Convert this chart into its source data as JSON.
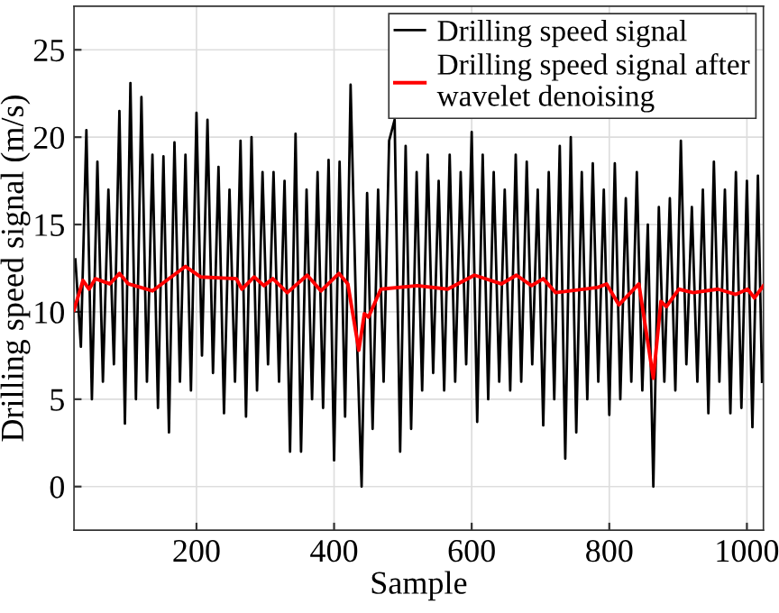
{
  "chart_data": {
    "type": "line",
    "xlabel": "Sample",
    "ylabel": "Drilling speed signal (m/s)",
    "xlim": [
      22,
      1024
    ],
    "ylim": [
      -2.5,
      27.5
    ],
    "xticks": [
      200,
      400,
      600,
      800,
      1000
    ],
    "yticks": [
      0,
      5,
      10,
      15,
      20,
      25
    ],
    "grid": true,
    "legend": "top right",
    "line_style": "solid",
    "marker": "none",
    "series": [
      {
        "name": "Drilling speed signal",
        "color": "#000000",
        "x": [
          24,
          32,
          40,
          48,
          56,
          64,
          72,
          80,
          88,
          96,
          104,
          112,
          120,
          128,
          136,
          144,
          152,
          160,
          168,
          176,
          184,
          192,
          200,
          208,
          216,
          224,
          232,
          240,
          248,
          256,
          264,
          272,
          280,
          288,
          296,
          304,
          312,
          320,
          328,
          336,
          344,
          352,
          360,
          368,
          376,
          384,
          392,
          400,
          408,
          416,
          424,
          432,
          440,
          448,
          456,
          464,
          472,
          480,
          488,
          496,
          504,
          512,
          520,
          528,
          536,
          544,
          552,
          560,
          568,
          576,
          584,
          592,
          600,
          608,
          616,
          624,
          632,
          640,
          648,
          656,
          664,
          672,
          680,
          688,
          696,
          704,
          712,
          720,
          728,
          736,
          744,
          752,
          760,
          768,
          776,
          784,
          792,
          800,
          808,
          816,
          824,
          832,
          840,
          848,
          856,
          864,
          872,
          880,
          888,
          896,
          904,
          912,
          920,
          928,
          936,
          944,
          952,
          960,
          968,
          976,
          984,
          992,
          1000,
          1008,
          1016,
          1022
        ],
        "values": [
          13,
          8,
          20.4,
          5,
          18.6,
          6,
          17,
          7,
          21.5,
          3.6,
          23.1,
          5,
          22.3,
          6,
          19,
          4.5,
          18.9,
          3.1,
          19.7,
          6,
          19,
          5.5,
          21.4,
          7.5,
          21,
          6.5,
          18.3,
          4.2,
          17,
          6,
          19.8,
          4,
          20,
          5.5,
          18,
          7,
          18,
          6,
          17.5,
          2,
          20.2,
          2,
          17,
          5,
          18,
          4.5,
          18.7,
          1.5,
          18.6,
          4,
          23,
          10,
          0,
          16.8,
          3.3,
          17,
          6,
          19.8,
          21,
          2,
          19.5,
          3.3,
          18,
          5.5,
          19,
          6.5,
          17.5,
          5.5,
          19,
          6,
          18,
          7,
          20.3,
          3.7,
          19,
          5,
          18,
          6,
          17,
          5.5,
          19,
          6,
          18.6,
          7,
          17,
          3.5,
          18,
          5,
          19.5,
          1.6,
          20,
          3.1,
          18,
          5,
          18.5,
          6,
          17,
          4.1,
          18.5,
          5,
          16.5,
          6,
          18,
          5.5,
          15,
          0,
          16,
          6,
          16.5,
          5.5,
          19.8,
          7,
          16,
          6,
          17,
          4.2,
          18.6,
          6,
          17,
          4.2,
          18,
          4.5,
          17.5,
          3.4,
          17.8,
          6
        ]
      },
      {
        "name": "Drilling speed signal after\nwavelet denoising",
        "color": "#ff0000",
        "x": [
          22,
          35,
          44,
          53,
          74,
          88,
          101,
          136,
          184,
          206,
          258,
          266,
          284,
          298,
          311,
          332,
          361,
          381,
          407,
          420,
          436,
          444,
          450,
          468,
          521,
          565,
          604,
          643,
          665,
          687,
          704,
          722,
          783,
          796,
          814,
          843,
          864,
          875,
          883,
          901,
          922,
          958,
          984,
          1001,
          1011,
          1024
        ],
        "values": [
          10.1,
          11.8,
          11.3,
          11.9,
          11.6,
          12.2,
          11.6,
          11.2,
          12.6,
          12.0,
          11.9,
          11.3,
          12.0,
          11.5,
          11.9,
          11.1,
          12.1,
          11.2,
          12.2,
          11.6,
          7.8,
          9.9,
          9.7,
          11.3,
          11.5,
          11.3,
          12.1,
          11.6,
          12.1,
          11.5,
          11.9,
          11.1,
          11.4,
          11.6,
          10.4,
          11.6,
          6.2,
          10.6,
          10.3,
          11.3,
          11.1,
          11.3,
          11.0,
          11.3,
          10.8,
          11.5
        ]
      }
    ]
  }
}
